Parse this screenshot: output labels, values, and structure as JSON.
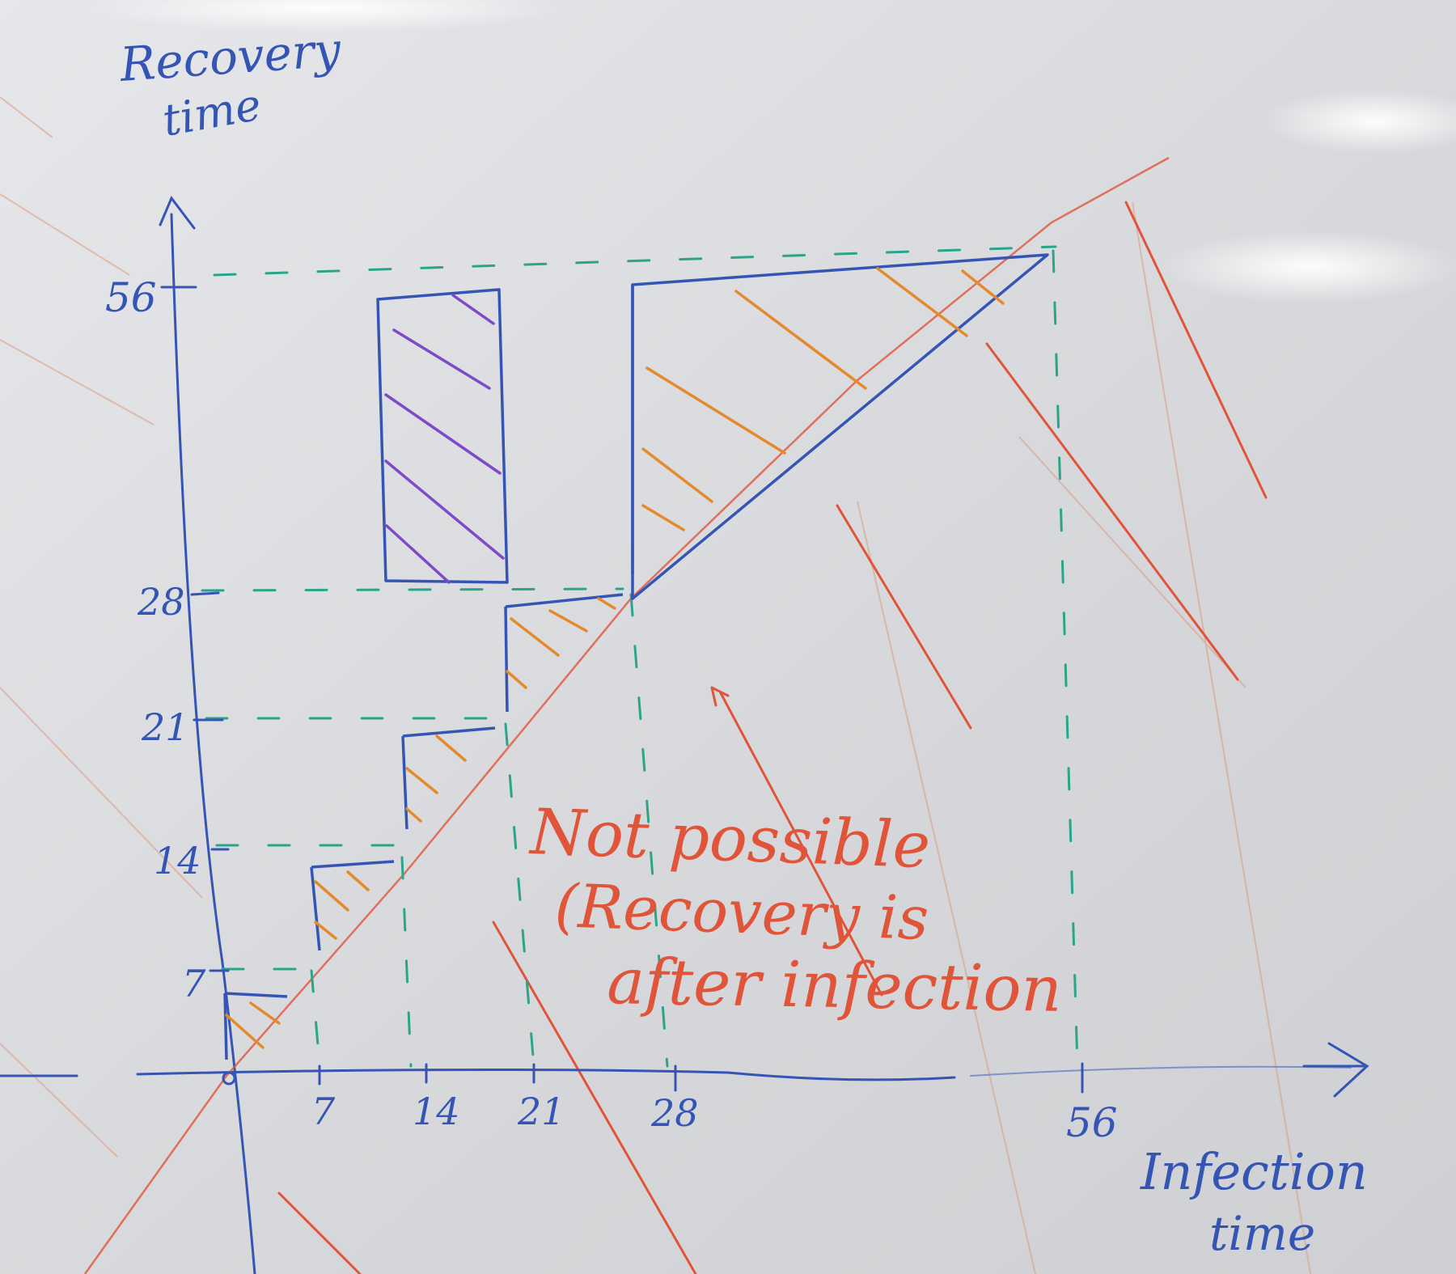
{
  "colors": {
    "board": "#dcdde0",
    "axis_blue": "#3555b5",
    "grid_green": "#2aa58a",
    "hatch_orange": "#e58a2c",
    "hatch_purple": "#7d4ac9",
    "note_red": "#e0553a",
    "faint_red": "#d9826f"
  },
  "axes": {
    "y_label_line1": "Recovery",
    "y_label_line2": "time",
    "x_label_line1": "Infection",
    "x_label_line2": "time",
    "x_ticks": [
      "7",
      "14",
      "21",
      "28",
      "56"
    ],
    "y_ticks": [
      "7",
      "14",
      "21",
      "28",
      "56"
    ]
  },
  "note": {
    "line1": "Not possible",
    "line2": "(Recovery is",
    "line3": "after infection"
  },
  "icons": {
    "y_arrow": "arrow-up-icon",
    "x_arrow": "arrow-right-icon"
  }
}
